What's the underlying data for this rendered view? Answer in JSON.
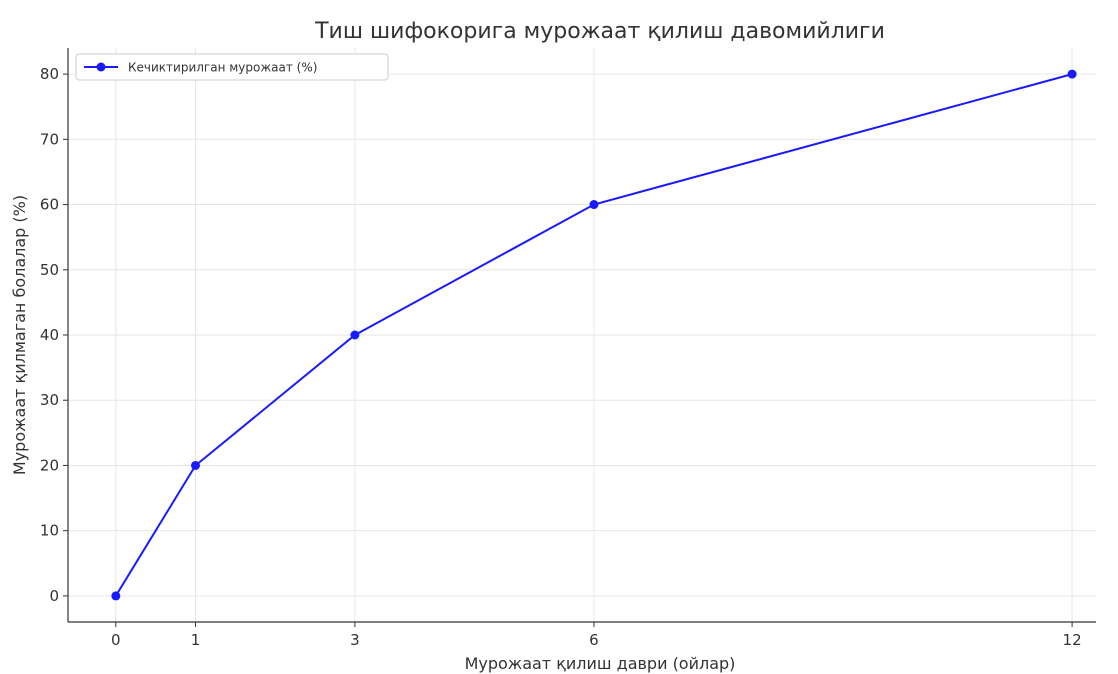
{
  "chart_data": {
    "type": "line",
    "title": "Тиш шифокорига мурожаат қилиш давомийлиги",
    "xlabel": "Мурожаат қилиш даври (ойлар)",
    "ylabel": "Мурожаат қилмаган болалар (%)",
    "x": [
      0,
      1,
      3,
      6,
      12
    ],
    "xticks": [
      0,
      1,
      3,
      6,
      12
    ],
    "yticks": [
      0,
      10,
      20,
      30,
      40,
      50,
      60,
      70,
      80
    ],
    "xlim": [
      -0.6,
      12.3
    ],
    "ylim": [
      -4,
      84
    ],
    "grid": true,
    "legend_position": "top-left",
    "series": [
      {
        "name": "Кечиктирилган мурожаат (%)",
        "values": [
          0,
          20,
          40,
          60,
          80
        ],
        "color": "#1a1aff",
        "marker": "circle"
      }
    ]
  }
}
